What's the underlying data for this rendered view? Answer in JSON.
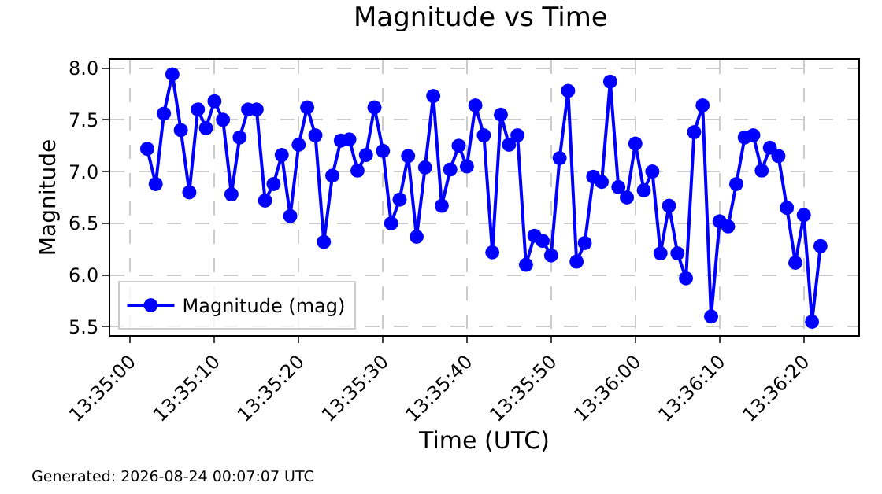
{
  "chart_data": {
    "type": "line",
    "title": "Magnitude vs Time",
    "xlabel": "Time (UTC)",
    "ylabel": "Magnitude",
    "annotations": [
      "Generated: 2026-08-24 00:07:07 UTC"
    ],
    "x": [
      13.58389,
      13.58417,
      13.58444,
      13.58472,
      13.585,
      13.58528,
      13.58556,
      13.58583,
      13.58611,
      13.58639,
      13.58667,
      13.58694,
      13.58722,
      13.5875,
      13.58778,
      13.58806,
      13.58833,
      13.58861,
      13.58889,
      13.58917,
      13.58944,
      13.58972,
      13.59,
      13.59028,
      13.59056,
      13.59083,
      13.59111,
      13.59139,
      13.59167,
      13.59194,
      13.59222,
      13.5925,
      13.59278,
      13.59306,
      13.59333,
      13.59361,
      13.59389,
      13.59417,
      13.59444,
      13.59472,
      13.595,
      13.59528,
      13.59556,
      13.59583,
      13.59611,
      13.59639,
      13.59667,
      13.59694,
      13.59722,
      13.5975,
      13.59778,
      13.59806,
      13.59833,
      13.59861,
      13.59889,
      13.59917,
      13.59944,
      13.59972,
      13.6,
      13.60028,
      13.60056,
      13.60083,
      13.60111,
      13.60139,
      13.60167,
      13.60194,
      13.60222,
      13.6025,
      13.60278,
      13.60306,
      13.60333,
      13.60361,
      13.60389,
      13.60417,
      13.60444,
      13.60472,
      13.605,
      13.60528,
      13.60556,
      13.60583,
      13.60611
    ],
    "series": [
      {
        "name": "Magnitude (mag)",
        "color": "#0000ff",
        "values": [
          7.22,
          6.88,
          7.56,
          7.94,
          7.4,
          6.8,
          7.6,
          7.42,
          7.68,
          7.5,
          6.78,
          7.33,
          7.6,
          7.6,
          6.72,
          6.88,
          7.16,
          6.57,
          7.26,
          7.62,
          7.35,
          6.32,
          6.96,
          7.3,
          7.31,
          7.01,
          7.16,
          7.62,
          7.2,
          6.5,
          6.73,
          7.15,
          6.37,
          7.04,
          7.73,
          6.67,
          7.02,
          7.25,
          7.05,
          7.64,
          7.35,
          6.22,
          7.55,
          7.26,
          7.35,
          6.1,
          6.38,
          6.33,
          6.19,
          7.13,
          7.78,
          6.13,
          6.31,
          6.95,
          6.9,
          7.87,
          6.85,
          6.75,
          7.27,
          6.82,
          7.0,
          6.21,
          6.67,
          6.21,
          5.97,
          7.38,
          7.64,
          5.6,
          6.52,
          6.47,
          6.88,
          7.33,
          7.35,
          7.01,
          7.23,
          7.15,
          6.65,
          6.12,
          6.58,
          5.55,
          6.28
        ]
      }
    ],
    "xlim": [
      13.58267,
      13.60736
    ],
    "xticks": [
      {
        "value": 13.58333,
        "label": "13:35:00"
      },
      {
        "value": 13.58611,
        "label": "13:35:10"
      },
      {
        "value": 13.58889,
        "label": "13:35:20"
      },
      {
        "value": 13.59167,
        "label": "13:35:30"
      },
      {
        "value": 13.59444,
        "label": "13:35:40"
      },
      {
        "value": 13.59722,
        "label": "13:35:50"
      },
      {
        "value": 13.6,
        "label": "13:36:00"
      },
      {
        "value": 13.60278,
        "label": "13:36:10"
      },
      {
        "value": 13.60556,
        "label": "13:36:20"
      }
    ],
    "ylim": [
      5.42,
      8.08
    ],
    "yticks": [
      {
        "value": 5.5,
        "label": "5.5"
      },
      {
        "value": 6.0,
        "label": "6.0"
      },
      {
        "value": 6.5,
        "label": "6.5"
      },
      {
        "value": 7.0,
        "label": "7.0"
      },
      {
        "value": 7.5,
        "label": "7.5"
      },
      {
        "value": 8.0,
        "label": "8.0"
      }
    ],
    "grid": true,
    "legend": "bottom left",
    "marker": "circle",
    "line_style": "solid"
  }
}
